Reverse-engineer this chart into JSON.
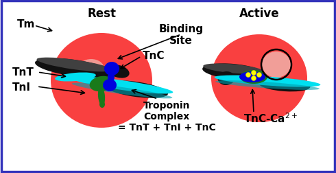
{
  "background_color": "#ffffff",
  "border_color": "#3333bb",
  "title_rest": "Rest",
  "title_active": "Active",
  "label_tm": "Tm",
  "label_tnt": "TnT",
  "label_tni": "TnI",
  "label_tnc": "TnC",
  "label_binding_site": "Binding\nSite",
  "label_troponin": "Troponin\nComplex\n= TnT + TnI + TnC",
  "label_tnc_ca": "TnC-Ca$^{2+}$",
  "red_color": "#f94040",
  "pink_color": "#f0b0a8",
  "dark_color": "#1a1a1a",
  "gray_color": "#555555",
  "cyan_color": "#00e0f0",
  "dark_cyan_color": "#00a0b0",
  "blue_color": "#0000dd",
  "green_color": "#1a7a1a",
  "yellow_color": "#ffff00",
  "text_color": "#000000",
  "title_fontsize": 12,
  "label_fontsize": 9
}
